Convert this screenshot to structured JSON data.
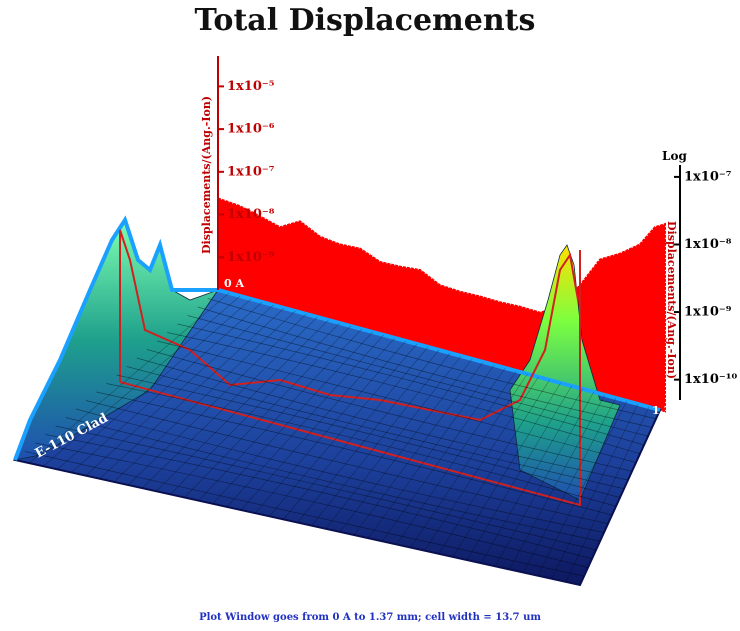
{
  "chart_data": {
    "type": "area",
    "title": "Total Displacements",
    "footnote": "Plot Window goes from 0 A to 1.37 mm;  cell width = 13.7 um",
    "x_start_label": "0 A",
    "x_end_label": "1.37",
    "region_label": "E-110 Clad",
    "ylabel": "Displacements/(Ang.-Ion)",
    "y2label": "Displacements/(Ang.-Ion)",
    "y2_scale_label": "Log",
    "log_scale": true,
    "xlim": [
      0,
      1.37
    ],
    "ylim": [
      1e-10,
      3e-05
    ],
    "yticks": [
      {
        "value": 1e-05,
        "label": "1x10⁻⁵"
      },
      {
        "value": 1e-06,
        "label": "1x10⁻⁶"
      },
      {
        "value": 1e-07,
        "label": "1x10⁻⁷"
      },
      {
        "value": 1e-08,
        "label": "1x10⁻⁸"
      },
      {
        "value": 1e-09,
        "label": "1x10⁻⁹"
      }
    ],
    "y2lim": [
      5e-11,
      1.5e-07
    ],
    "y2ticks": [
      {
        "value": 1e-07,
        "label": "1x10⁻⁷"
      },
      {
        "value": 1e-08,
        "label": "1x10⁻⁸"
      },
      {
        "value": 1e-09,
        "label": "1x10⁻⁹"
      },
      {
        "value": 1e-10,
        "label": "1x10⁻¹⁰"
      }
    ],
    "x": [
      0,
      0.067,
      0.129,
      0.19,
      0.251,
      0.313,
      0.374,
      0.435,
      0.497,
      0.558,
      0.619,
      0.68,
      0.742,
      0.803,
      0.864,
      0.926,
      0.987,
      1.048,
      1.11,
      1.171,
      1.232,
      1.293,
      1.339,
      1.37
    ],
    "series": [
      {
        "axis": "y2",
        "color": "#ff0000",
        "values": [
          4.8e-08,
          3.7e-08,
          2.6e-08,
          1.8e-08,
          2.2e-08,
          1.3e-08,
          1e-08,
          8.7e-09,
          5.5e-09,
          4.7e-09,
          4.2e-09,
          2.5e-09,
          2e-09,
          1.7e-09,
          1.4e-09,
          1.2e-09,
          9.8e-10,
          1.2e-09,
          2.5e-09,
          6e-09,
          7.3e-09,
          1e-08,
          1.8e-08,
          2e-08
        ]
      }
    ]
  }
}
